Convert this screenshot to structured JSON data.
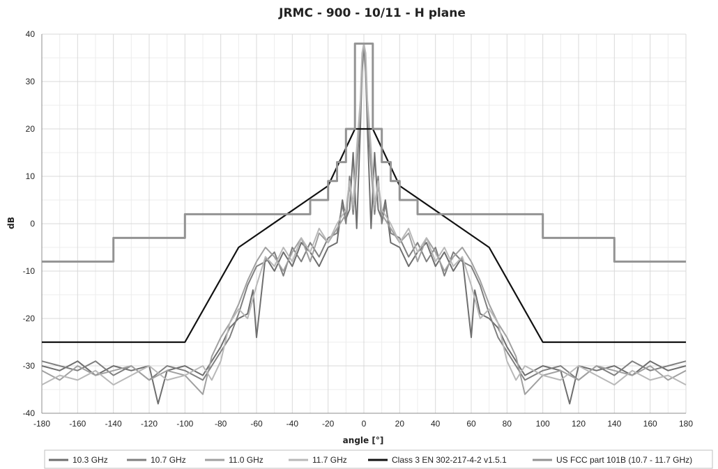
{
  "chart_data": {
    "type": "line",
    "title": "JRMC - 900 - 10/11 - H plane",
    "xlabel": "angle [°]",
    "ylabel": "dB",
    "xlim": [
      -180,
      180
    ],
    "ylim": [
      -40,
      40
    ],
    "xticks": [
      -180,
      -160,
      -140,
      -120,
      -100,
      -80,
      -60,
      -40,
      -20,
      0,
      20,
      40,
      60,
      80,
      100,
      120,
      140,
      160,
      180
    ],
    "yticks": [
      -40,
      -30,
      -20,
      -10,
      0,
      10,
      20,
      30,
      40
    ],
    "grid": true,
    "legend": "bottom",
    "series": [
      {
        "name": "10.3 GHz",
        "color": "#6e6e6e",
        "x": [
          -180,
          -170,
          -160,
          -150,
          -140,
          -130,
          -120,
          -115,
          -110,
          -100,
          -90,
          -85,
          -80,
          -75,
          -70,
          -65,
          -62,
          -60,
          -55,
          -50,
          -45,
          -40,
          -35,
          -30,
          -25,
          -20,
          -15,
          -12,
          -10,
          -8,
          -6,
          -4,
          -2,
          -1,
          0,
          1,
          2,
          4,
          6,
          8,
          10,
          12,
          15,
          20,
          25,
          30,
          35,
          40,
          45,
          50,
          55,
          60,
          62,
          65,
          70,
          75,
          80,
          85,
          90,
          100,
          110,
          115,
          120,
          130,
          140,
          150,
          160,
          170,
          180
        ],
        "y": [
          -30,
          -31,
          -29,
          -32,
          -30,
          -31,
          -30,
          -38,
          -31,
          -30,
          -32,
          -29,
          -26,
          -22,
          -20,
          -19,
          -14,
          -24,
          -7,
          -10,
          -6,
          -9,
          -4,
          -6,
          -9,
          -5,
          -4,
          5,
          1,
          3,
          15,
          -1,
          20,
          32,
          38,
          32,
          20,
          -1,
          15,
          3,
          1,
          5,
          -4,
          -5,
          -9,
          -6,
          -4,
          -9,
          -6,
          -10,
          -7,
          -24,
          -14,
          -19,
          -20,
          -22,
          -26,
          -29,
          -32,
          -30,
          -31,
          -38,
          -30,
          -31,
          -30,
          -32,
          -29,
          -31,
          -30
        ]
      },
      {
        "name": "10.7 GHz",
        "color": "#7f7f7f",
        "x": [
          -180,
          -170,
          -160,
          -150,
          -140,
          -130,
          -120,
          -110,
          -100,
          -90,
          -85,
          -80,
          -75,
          -70,
          -65,
          -60,
          -55,
          -50,
          -45,
          -40,
          -35,
          -30,
          -25,
          -20,
          -15,
          -12,
          -10,
          -8,
          -6,
          -4,
          -2,
          -1,
          0,
          1,
          2,
          4,
          6,
          8,
          10,
          12,
          15,
          20,
          25,
          30,
          35,
          40,
          45,
          50,
          55,
          60,
          65,
          70,
          75,
          80,
          85,
          90,
          100,
          110,
          120,
          130,
          140,
          150,
          160,
          170,
          180
        ],
        "y": [
          -29,
          -30,
          -31,
          -29,
          -32,
          -30,
          -33,
          -30,
          -31,
          -33,
          -30,
          -27,
          -24,
          -19,
          -13,
          -9,
          -8,
          -6,
          -11,
          -5,
          -8,
          -4,
          -7,
          -3,
          -2,
          4,
          0,
          10,
          2,
          12,
          22,
          34,
          37,
          34,
          22,
          12,
          2,
          10,
          0,
          4,
          -2,
          -3,
          -7,
          -4,
          -8,
          -5,
          -11,
          -6,
          -8,
          -9,
          -13,
          -19,
          -24,
          -27,
          -30,
          -33,
          -31,
          -30,
          -33,
          -30,
          -32,
          -29,
          -31,
          -30,
          -29
        ]
      },
      {
        "name": "11.0 GHz",
        "color": "#a0a0a0",
        "x": [
          -180,
          -170,
          -160,
          -150,
          -140,
          -130,
          -120,
          -110,
          -100,
          -95,
          -90,
          -85,
          -80,
          -75,
          -70,
          -65,
          -60,
          -55,
          -50,
          -45,
          -40,
          -35,
          -30,
          -25,
          -20,
          -15,
          -10,
          -8,
          -6,
          -4,
          -2,
          -1,
          0,
          1,
          2,
          4,
          6,
          8,
          10,
          15,
          20,
          25,
          30,
          35,
          40,
          45,
          50,
          55,
          60,
          65,
          70,
          75,
          80,
          85,
          90,
          95,
          100,
          110,
          120,
          130,
          140,
          150,
          160,
          170,
          180
        ],
        "y": [
          -31,
          -33,
          -30,
          -32,
          -31,
          -30,
          -33,
          -31,
          -32,
          -34,
          -36,
          -28,
          -24,
          -21,
          -17,
          -12,
          -8,
          -5,
          -7,
          -10,
          -6,
          -3,
          -8,
          -2,
          -4,
          -1,
          2,
          8,
          3,
          14,
          24,
          35,
          38,
          35,
          24,
          14,
          3,
          8,
          2,
          -1,
          -4,
          -2,
          -8,
          -3,
          -6,
          -10,
          -7,
          -5,
          -8,
          -12,
          -17,
          -21,
          -24,
          -28,
          -36,
          -34,
          -32,
          -31,
          -33,
          -30,
          -31,
          -32,
          -30,
          -33,
          -31
        ]
      },
      {
        "name": "11.7 GHz",
        "color": "#b8b8b8",
        "x": [
          -180,
          -170,
          -160,
          -150,
          -140,
          -130,
          -120,
          -110,
          -100,
          -90,
          -85,
          -80,
          -75,
          -70,
          -65,
          -60,
          -55,
          -50,
          -45,
          -40,
          -35,
          -30,
          -25,
          -20,
          -15,
          -10,
          -8,
          -6,
          -4,
          -2,
          -1,
          0,
          1,
          2,
          4,
          6,
          8,
          10,
          15,
          20,
          25,
          30,
          35,
          40,
          45,
          50,
          55,
          60,
          65,
          70,
          75,
          80,
          85,
          90,
          100,
          110,
          120,
          130,
          140,
          150,
          160,
          170,
          180
        ],
        "y": [
          -34,
          -32,
          -33,
          -31,
          -34,
          -32,
          -30,
          -33,
          -32,
          -30,
          -33,
          -29,
          -21,
          -18,
          -20,
          -13,
          -7,
          -9,
          -5,
          -8,
          -3,
          -6,
          -1,
          -4,
          0,
          3,
          9,
          4,
          16,
          26,
          36,
          38,
          36,
          26,
          16,
          4,
          9,
          3,
          0,
          -4,
          -1,
          -6,
          -3,
          -8,
          -5,
          -9,
          -7,
          -13,
          -20,
          -18,
          -21,
          -29,
          -33,
          -30,
          -32,
          -33,
          -30,
          -32,
          -34,
          -31,
          -33,
          -32,
          -34
        ]
      },
      {
        "name": "Class 3 EN 302-217-4-2 v1.5.1",
        "color": "#111111",
        "x": [
          -180,
          -100,
          -70,
          -20,
          -5,
          5,
          20,
          70,
          100,
          180
        ],
        "y": [
          -25,
          -25,
          -5,
          8,
          20,
          20,
          8,
          -5,
          -25,
          -25
        ]
      },
      {
        "name": "US FCC part 101B (10.7 - 11.7 GHz)",
        "color": "#939393",
        "x": [
          -180,
          -140,
          -140,
          -100,
          -100,
          -30,
          -30,
          -20,
          -20,
          -15,
          -15,
          -10,
          -10,
          -5,
          -5,
          5,
          5,
          10,
          10,
          15,
          15,
          20,
          20,
          30,
          30,
          100,
          100,
          140,
          140,
          180
        ],
        "y": [
          -8,
          -8,
          -3,
          -3,
          2,
          2,
          5,
          5,
          9,
          9,
          13,
          13,
          20,
          20,
          38,
          38,
          20,
          20,
          13,
          13,
          9,
          9,
          5,
          5,
          2,
          2,
          -3,
          -3,
          -8,
          -8
        ]
      }
    ]
  }
}
